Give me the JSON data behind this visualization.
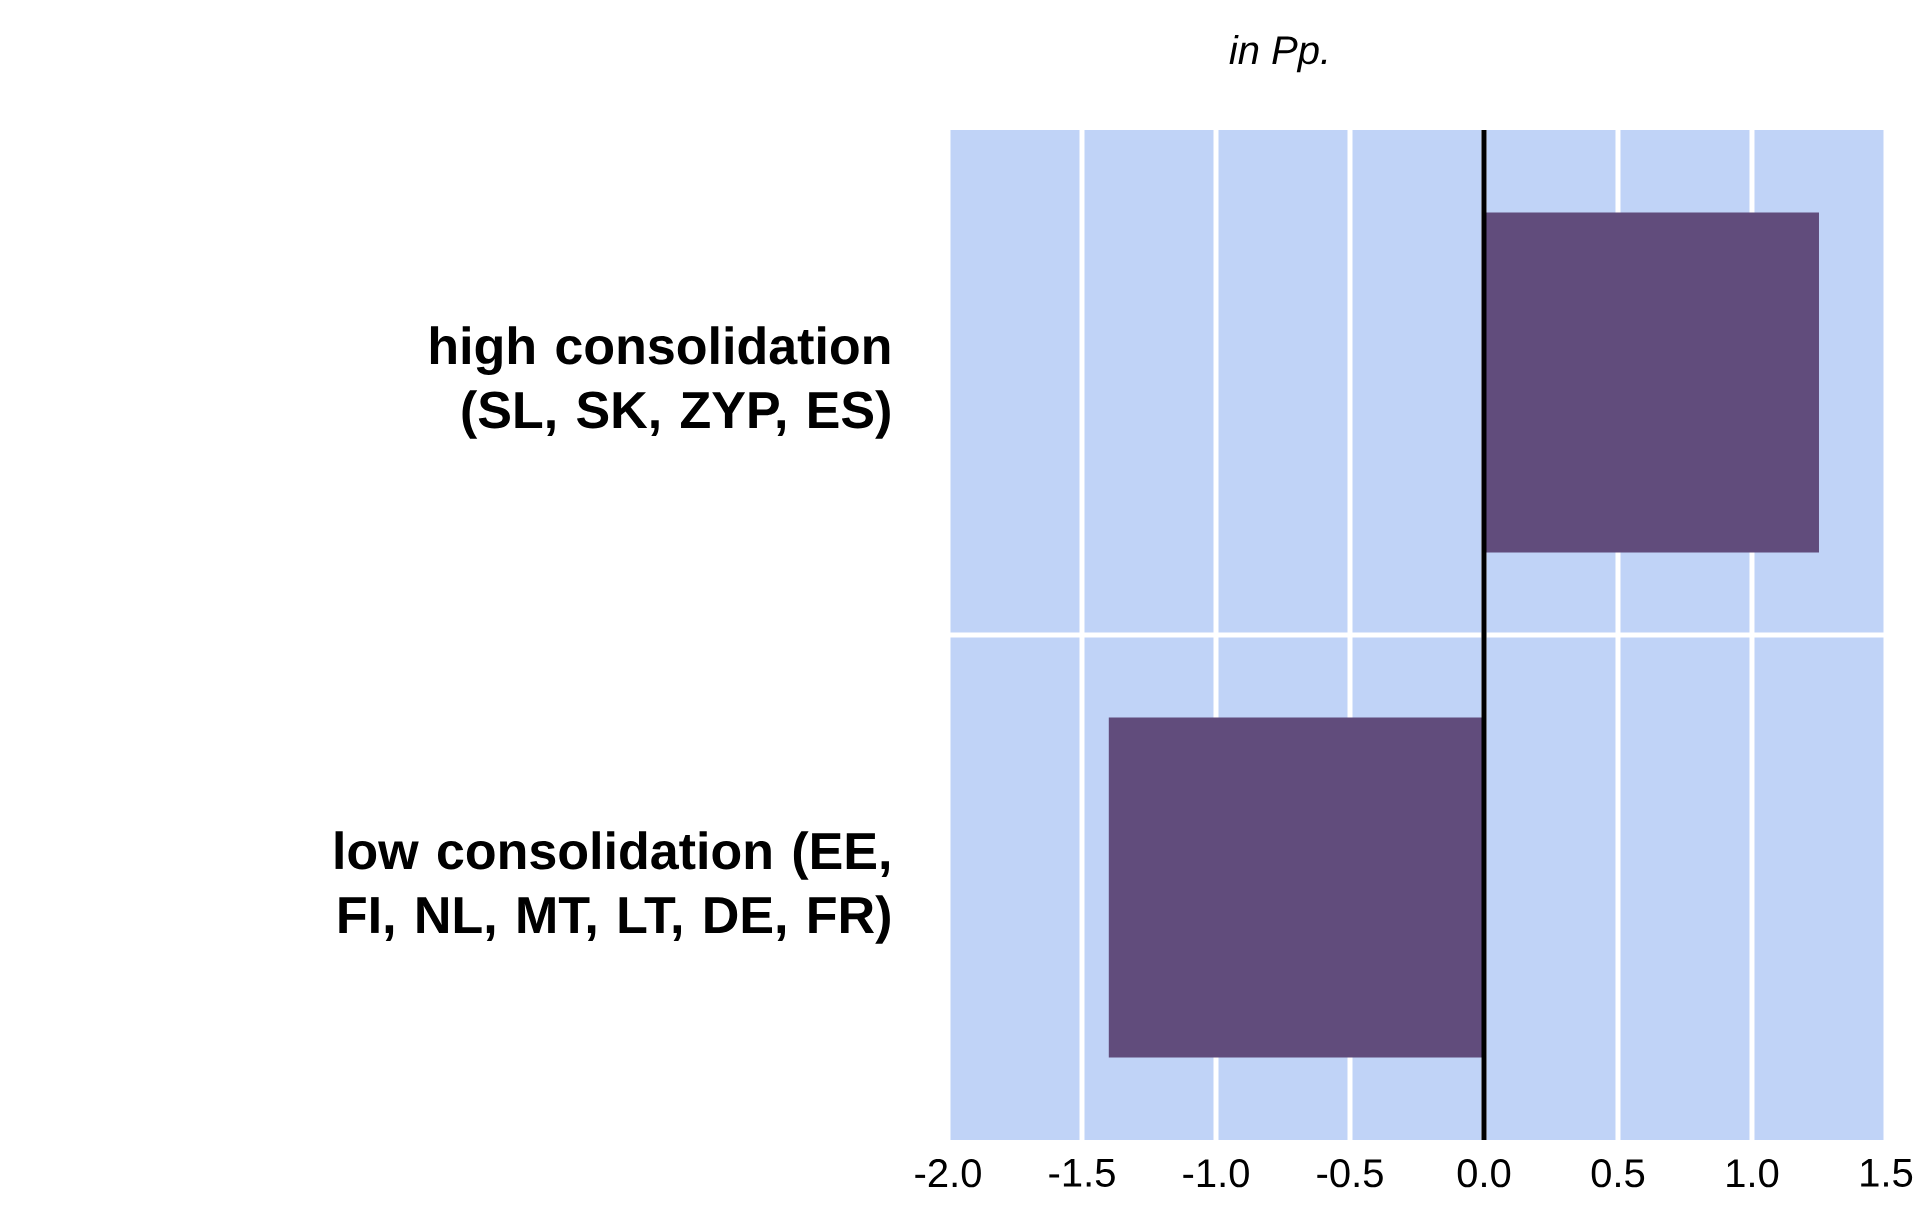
{
  "chart_data": {
    "type": "bar",
    "orientation": "horizontal",
    "title": "in Pp.",
    "categories": [
      "high consolidation (SL, SK, ZYP, ES)",
      "low consolidation (EE, FI, NL, MT, LT, DE, FR)"
    ],
    "values": [
      1.25,
      -1.4
    ],
    "color": "#614c7c",
    "xlim": [
      -2,
      1.5
    ],
    "xticks": [
      {
        "value": -2,
        "label": "-2.0"
      },
      {
        "value": -1.5,
        "label": "-1.5"
      },
      {
        "value": -1,
        "label": "-1.0"
      },
      {
        "value": -0.5,
        "label": "-0.5"
      },
      {
        "value": 0,
        "label": "0.0"
      },
      {
        "value": 0.5,
        "label": "0.5"
      },
      {
        "value": 1,
        "label": "1.0"
      },
      {
        "value": 1.5,
        "label": "1.5"
      }
    ],
    "grid": "x",
    "ref_lines": [
      {
        "axis": "x",
        "value": 0,
        "color": "#000000"
      }
    ]
  }
}
